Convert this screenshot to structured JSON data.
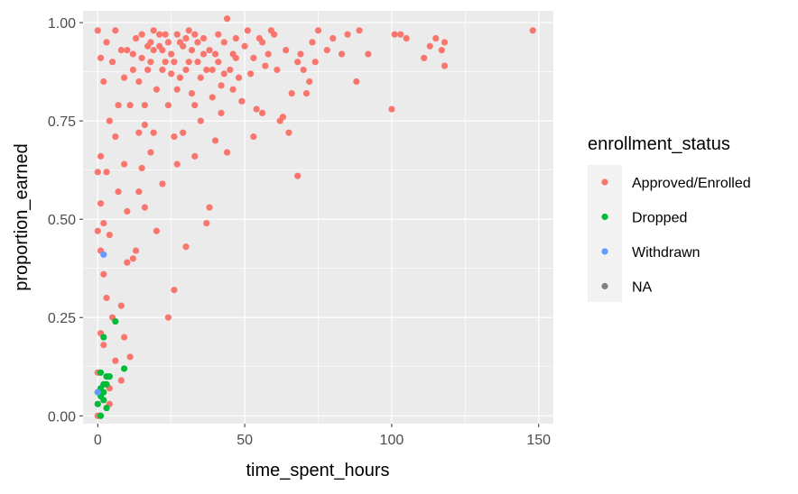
{
  "chart_data": {
    "type": "scatter",
    "xlabel": "time_spent_hours",
    "ylabel": "proportion_earned",
    "xlim": [
      -5,
      155
    ],
    "ylim": [
      -0.02,
      1.03
    ],
    "x_ticks": [
      0,
      50,
      100,
      150
    ],
    "x_tick_labels": [
      "0",
      "50",
      "100",
      "150"
    ],
    "y_ticks": [
      0,
      0.25,
      0.5,
      0.75,
      1
    ],
    "y_tick_labels": [
      "0.00",
      "0.25",
      "0.50",
      "0.75",
      "1.00"
    ],
    "grid": true,
    "legend": {
      "title": "enrollment_status",
      "position": "right",
      "entries": [
        "Approved/Enrolled",
        "Dropped",
        "Withdrawn",
        "NA"
      ]
    },
    "series": [
      {
        "name": "Approved/Enrolled",
        "color": "#F8766D",
        "points": [
          [
            148,
            0.98
          ],
          [
            118,
            0.89
          ],
          [
            117,
            0.93
          ],
          [
            118,
            0.95
          ],
          [
            115,
            0.96
          ],
          [
            113,
            0.94
          ],
          [
            111,
            0.91
          ],
          [
            105,
            0.96
          ],
          [
            103,
            0.97
          ],
          [
            101,
            0.97
          ],
          [
            100,
            0.78
          ],
          [
            92,
            0.92
          ],
          [
            89,
            0.98
          ],
          [
            88,
            0.85
          ],
          [
            85,
            0.97
          ],
          [
            83,
            0.92
          ],
          [
            80,
            0.96
          ],
          [
            78,
            0.93
          ],
          [
            75,
            0.98
          ],
          [
            74,
            0.9
          ],
          [
            73,
            0.95
          ],
          [
            72,
            0.85
          ],
          [
            71,
            0.82
          ],
          [
            70,
            0.88
          ],
          [
            69,
            0.92
          ],
          [
            68,
            0.9
          ],
          [
            68,
            0.61
          ],
          [
            66,
            0.82
          ],
          [
            65,
            0.72
          ],
          [
            64,
            0.93
          ],
          [
            63,
            0.76
          ],
          [
            62,
            0.75
          ],
          [
            61,
            0.88
          ],
          [
            60,
            0.97
          ],
          [
            59,
            0.98
          ],
          [
            58,
            0.92
          ],
          [
            57,
            0.89
          ],
          [
            56,
            0.95
          ],
          [
            56,
            0.77
          ],
          [
            55,
            0.96
          ],
          [
            54,
            0.78
          ],
          [
            53,
            0.91
          ],
          [
            52,
            0.87
          ],
          [
            51,
            0.98
          ],
          [
            50,
            0.94
          ],
          [
            49,
            0.8
          ],
          [
            48,
            0.86
          ],
          [
            47,
            0.96
          ],
          [
            46,
            0.92
          ],
          [
            45,
            0.88
          ],
          [
            44,
            1.01
          ],
          [
            43,
            0.95
          ],
          [
            42,
            0.84
          ],
          [
            41,
            0.97
          ],
          [
            40,
            0.92
          ],
          [
            40,
            0.7
          ],
          [
            39,
            0.88
          ],
          [
            38,
            0.93
          ],
          [
            38,
            0.53
          ],
          [
            37,
            0.49
          ],
          [
            36,
            0.96
          ],
          [
            35,
            0.86
          ],
          [
            34,
            0.9
          ],
          [
            33,
            0.79
          ],
          [
            32,
            0.93
          ],
          [
            31,
            0.98
          ],
          [
            30,
            0.88
          ],
          [
            29,
            0.72
          ],
          [
            28,
            0.95
          ],
          [
            27,
            0.83
          ],
          [
            26,
            0.9
          ],
          [
            26,
            0.32
          ],
          [
            25,
            0.92
          ],
          [
            24,
            0.79
          ],
          [
            24,
            0.25
          ],
          [
            23,
            0.97
          ],
          [
            22,
            0.88
          ],
          [
            22,
            0.59
          ],
          [
            21,
            0.94
          ],
          [
            20,
            0.83
          ],
          [
            20,
            0.47
          ],
          [
            19,
            0.98
          ],
          [
            18,
            0.9
          ],
          [
            18,
            0.67
          ],
          [
            17,
            0.94
          ],
          [
            16,
            0.79
          ],
          [
            16,
            0.53
          ],
          [
            15,
            0.91
          ],
          [
            14,
            0.85
          ],
          [
            14,
            0.57
          ],
          [
            13,
            0.96
          ],
          [
            12,
            0.88
          ],
          [
            12,
            0.4
          ],
          [
            11,
            0.79
          ],
          [
            10,
            0.93
          ],
          [
            10,
            0.52
          ],
          [
            10,
            0.39
          ],
          [
            9,
            0.86
          ],
          [
            9,
            0.64
          ],
          [
            8,
            0.93
          ],
          [
            8,
            0.28
          ],
          [
            7,
            0.79
          ],
          [
            7,
            0.57
          ],
          [
            6,
            0.98
          ],
          [
            6,
            0.71
          ],
          [
            5,
            0.9
          ],
          [
            5,
            0.25
          ],
          [
            4,
            0.75
          ],
          [
            4,
            0.46
          ],
          [
            4,
            0.07
          ],
          [
            3,
            0.95
          ],
          [
            3,
            0.62
          ],
          [
            3,
            0.3
          ],
          [
            2,
            0.85
          ],
          [
            2,
            0.49
          ],
          [
            2,
            0.18
          ],
          [
            1,
            0.91
          ],
          [
            1,
            0.66
          ],
          [
            1,
            0.42
          ],
          [
            1,
            0.21
          ],
          [
            0,
            0.98
          ],
          [
            0,
            0.62
          ],
          [
            0,
            0.11
          ],
          [
            0,
            0.0
          ],
          [
            22,
            0.93
          ],
          [
            27,
            0.97
          ],
          [
            31,
            0.9
          ],
          [
            34,
            0.95
          ],
          [
            36,
            0.92
          ],
          [
            15,
            0.97
          ],
          [
            19,
            0.93
          ],
          [
            25,
            0.87
          ],
          [
            29,
            0.94
          ],
          [
            33,
            0.97
          ],
          [
            37,
            0.88
          ],
          [
            41,
            0.9
          ],
          [
            17,
            0.88
          ],
          [
            21,
            0.97
          ],
          [
            23,
            0.9
          ],
          [
            28,
            0.86
          ],
          [
            32,
            0.82
          ],
          [
            35,
            0.75
          ],
          [
            39,
            0.81
          ],
          [
            43,
            0.87
          ],
          [
            47,
            0.91
          ],
          [
            12,
            0.92
          ],
          [
            14,
            0.72
          ],
          [
            18,
            0.95
          ],
          [
            24,
            0.95
          ],
          [
            30,
            0.96
          ],
          [
            9,
            0.2
          ],
          [
            6,
            0.14
          ],
          [
            11,
            0.15
          ],
          [
            4,
            0.03
          ],
          [
            8,
            0.09
          ],
          [
            2,
            0.36
          ],
          [
            1,
            0.54
          ],
          [
            0,
            0.47
          ],
          [
            13,
            0.42
          ],
          [
            15,
            0.63
          ],
          [
            19,
            0.72
          ],
          [
            27,
            0.64
          ],
          [
            30,
            0.43
          ],
          [
            33,
            0.66
          ],
          [
            16,
            0.74
          ],
          [
            26,
            0.71
          ],
          [
            42,
            0.77
          ],
          [
            44,
            0.67
          ],
          [
            53,
            0.71
          ],
          [
            46,
            0.83
          ]
        ]
      },
      {
        "name": "Dropped",
        "color": "#00BA38",
        "points": [
          [
            0,
            0.03
          ],
          [
            1,
            0.05
          ],
          [
            1,
            0.07
          ],
          [
            2,
            0.06
          ],
          [
            2,
            0.08
          ],
          [
            3,
            0.1
          ],
          [
            3,
            0.02
          ],
          [
            4,
            0.1
          ],
          [
            1,
            0.11
          ],
          [
            2,
            0.2
          ],
          [
            6,
            0.24
          ],
          [
            9,
            0.12
          ],
          [
            0,
            0.06
          ],
          [
            1,
            0.0
          ],
          [
            3,
            0.08
          ],
          [
            2,
            0.04
          ]
        ]
      },
      {
        "name": "Withdrawn",
        "color": "#619CFF",
        "points": [
          [
            2,
            0.41
          ],
          [
            0,
            0.06
          ]
        ]
      },
      {
        "name": "NA",
        "color": "#7F7F7F",
        "points": []
      }
    ]
  }
}
